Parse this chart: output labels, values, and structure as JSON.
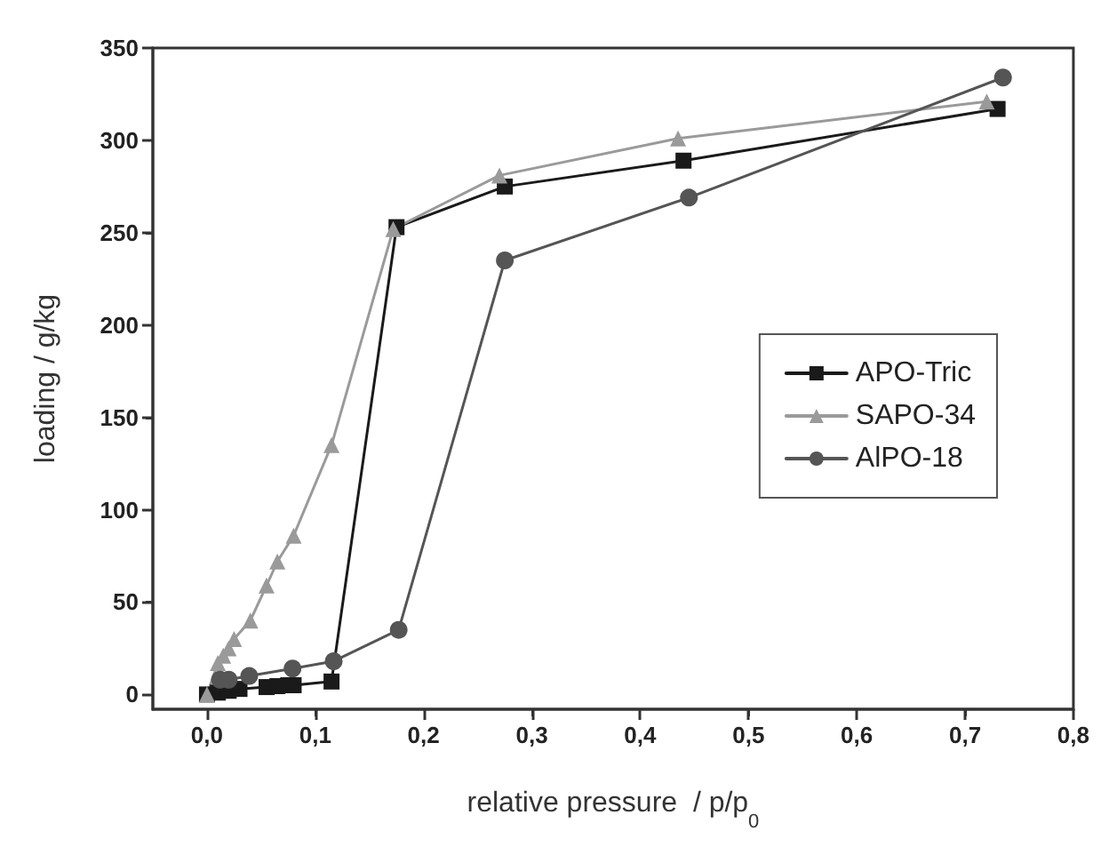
{
  "chart_data": {
    "type": "line",
    "xlabel": "relative pressure  / p/p$_{0}$",
    "ylabel": "loading / g/kg",
    "xlim": [
      -0.05,
      0.8
    ],
    "ylim": [
      -8,
      350
    ],
    "xticks": [
      {
        "value": 0,
        "label": "0,0"
      },
      {
        "value": 0.1,
        "label": "0,1"
      },
      {
        "value": 0.2,
        "label": "0,2"
      },
      {
        "value": 0.3,
        "label": "0,3"
      },
      {
        "value": 0.4,
        "label": "0,4"
      },
      {
        "value": 0.5,
        "label": "0,5"
      },
      {
        "value": 0.6,
        "label": "0,6"
      },
      {
        "value": 0.7,
        "label": "0,7"
      },
      {
        "value": 0.8,
        "label": "0,8"
      }
    ],
    "yticks": [
      0,
      50,
      100,
      150,
      200,
      250,
      300,
      350
    ],
    "grid": false,
    "legend": "right",
    "line_style": "solid",
    "series": [
      {
        "name": "APO-Tric",
        "color": "#1a1a1a",
        "marker": "square",
        "x": [
          0.0,
          0.01,
          0.02,
          0.03,
          0.055,
          0.065,
          0.075,
          0.08,
          0.115,
          0.175,
          0.275,
          0.44,
          0.73
        ],
        "values": [
          0,
          1,
          2,
          3,
          4,
          4.5,
          5,
          5,
          7,
          253,
          275,
          289,
          317
        ]
      },
      {
        "name": "SAPO-34",
        "color": "#9a9a9a",
        "marker": "triangle",
        "x": [
          0.0,
          0.01,
          0.015,
          0.02,
          0.025,
          0.04,
          0.055,
          0.065,
          0.08,
          0.115,
          0.172,
          0.27,
          0.435,
          0.72
        ],
        "values": [
          0,
          17,
          21,
          25,
          30,
          40,
          59,
          72,
          86,
          135,
          252,
          281,
          301,
          321
        ]
      },
      {
        "name": "AlPO-18",
        "color": "#555555",
        "marker": "circle",
        "x": [
          0.012,
          0.02,
          0.039,
          0.079,
          0.117,
          0.177,
          0.275,
          0.445,
          0.735
        ],
        "values": [
          8,
          8,
          10,
          14,
          18,
          35,
          235,
          269,
          334
        ]
      }
    ]
  }
}
